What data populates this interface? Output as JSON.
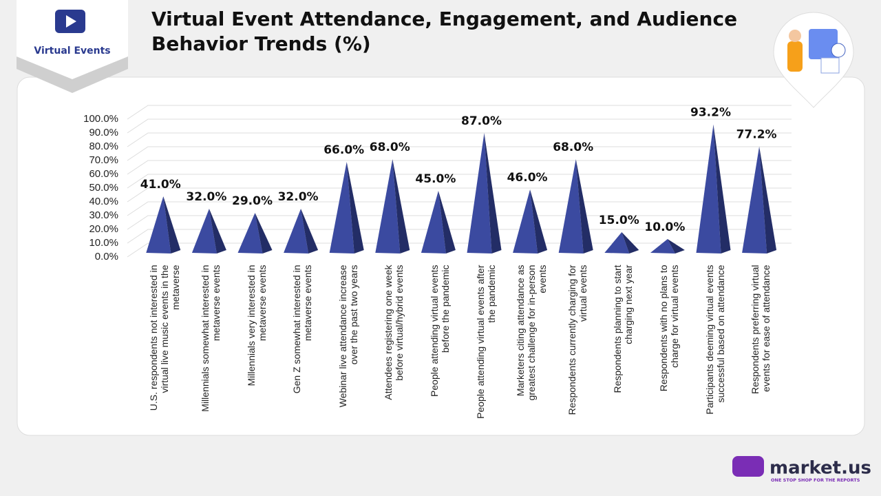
{
  "brand": {
    "badge": "Virtual Events",
    "logo": "market.us",
    "tagline": "ONE STOP SHOP FOR THE REPORTS"
  },
  "chart_data": {
    "type": "pyramid",
    "title": "Virtual Event Attendance, Engagement, and Audience Behavior Trends (%)",
    "categories": [
      "U.S. respondents not interested in virtual live music events in the metaverse",
      "Millennials somewhat interested in metaverse events",
      "Millennials very interested in metaverse events",
      "Gen Z somewhat interested in metaverse events",
      "Webinar live attendance increase over the past two years",
      "Attendees registering one week before virtual/hybrid events",
      "People attending virtual events before the pandemic",
      "People attending virtual events after the pandemic",
      "Marketers citing attendance as greatest challenge for in-person events",
      "Respondents currently charging for virtual events",
      "Respondents planning to start charging next year",
      "Respondents with no plans to charge for virtual events",
      "Participants deeming virtual events successful based on attendance",
      "Respondents preferring virtual events for ease of attendance"
    ],
    "values": [
      41,
      32,
      29,
      32,
      66,
      68,
      45,
      87,
      46,
      68,
      15,
      10,
      93.2,
      77.2
    ],
    "value_labels": [
      "41.0%",
      "32.0%",
      "29.0%",
      "32.0%",
      "66.0%",
      "68.0%",
      "45.0%",
      "87.0%",
      "46.0%",
      "68.0%",
      "15.0%",
      "10.0%",
      "93.2%",
      "77.2%"
    ],
    "color": "#3b4aa0",
    "ylim": [
      0,
      100
    ],
    "yticks": [
      {
        "value": 0,
        "label": "0.0%"
      },
      {
        "value": 10,
        "label": "10.0%"
      },
      {
        "value": 20,
        "label": "20.0%"
      },
      {
        "value": 30,
        "label": "30.0%"
      },
      {
        "value": 40,
        "label": "40.0%"
      },
      {
        "value": 50,
        "label": "50.0%"
      },
      {
        "value": 60,
        "label": "60.0%"
      },
      {
        "value": 70,
        "label": "70.0%"
      },
      {
        "value": 80,
        "label": "80.0%"
      },
      {
        "value": 90,
        "label": "90.0%"
      },
      {
        "value": 100,
        "label": "100.0%"
      }
    ],
    "grid": true
  }
}
